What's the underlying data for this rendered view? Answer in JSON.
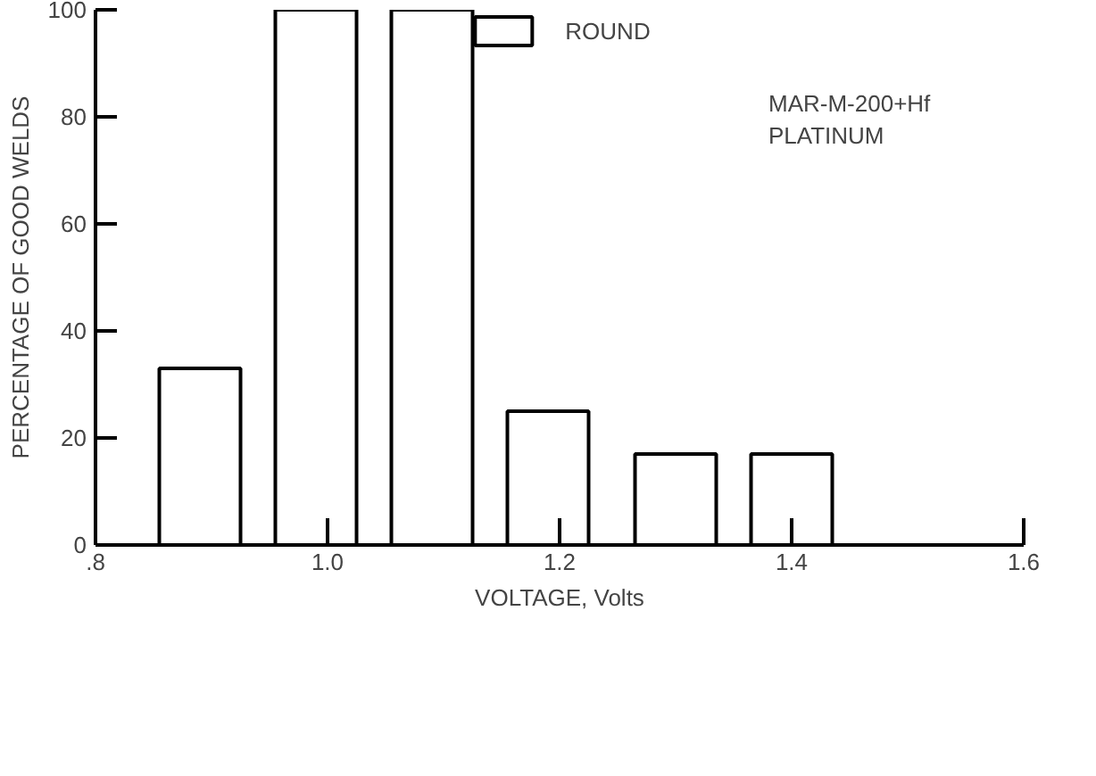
{
  "chart_data": {
    "type": "bar",
    "xlabel": "VOLTAGE, Volts",
    "ylabel": "PERCENTAGE OF GOOD WELDS",
    "x": [
      0.89,
      0.99,
      1.09,
      1.19,
      1.3,
      1.4
    ],
    "series": [
      {
        "name": "ROUND",
        "color": "#ffffff",
        "values": [
          33,
          100,
          100,
          25,
          17,
          17
        ]
      }
    ],
    "xlim": [
      0.8,
      1.6
    ],
    "xticks": [
      {
        "value": 0.8,
        "label": ".8"
      },
      {
        "value": 1.0,
        "label": "1.0"
      },
      {
        "value": 1.2,
        "label": "1.2"
      },
      {
        "value": 1.4,
        "label": "1.4"
      },
      {
        "value": 1.6,
        "label": "1.6"
      }
    ],
    "ylim": [
      0,
      100
    ],
    "yticks": [
      0,
      20,
      40,
      60,
      80,
      100
    ],
    "annotations": [
      "MAR-M-200+Hf\nPLATINUM"
    ],
    "legend": "top",
    "grid": false
  }
}
